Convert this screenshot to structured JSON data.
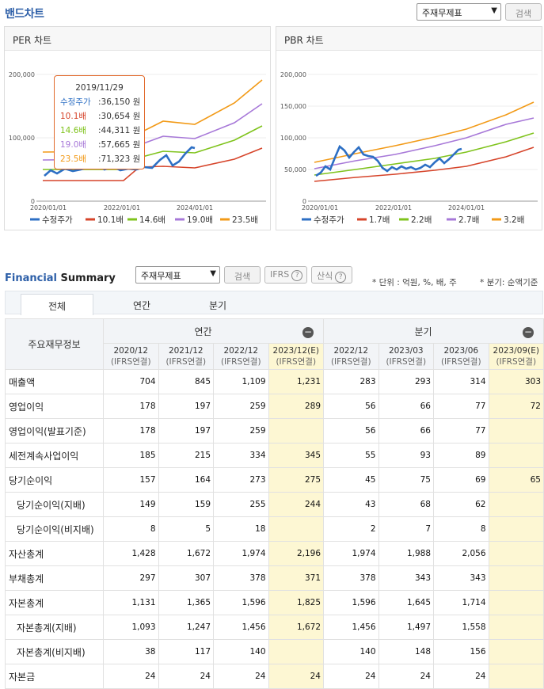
{
  "band": {
    "title": "밴드차트",
    "select": "주재무제표",
    "search": "검색"
  },
  "per": {
    "title": "PER 차트",
    "y_ticks": [
      "200,000",
      "100,000",
      "0"
    ],
    "x_ticks": [
      "2020/01/01",
      "2022/01/01",
      "2024/01/01"
    ],
    "legend": [
      "수정주가",
      "10.1배",
      "14.6배",
      "19.0배",
      "23.5배"
    ],
    "tooltip": {
      "date": "2019/11/29",
      "rows": [
        {
          "label": "수정주가",
          "value": ":36,150 원",
          "color": "#2d6fc4"
        },
        {
          "label": "10.1배",
          "value": ":30,654 원",
          "color": "#d6442a"
        },
        {
          "label": "14.6배",
          "value": ":44,311 원",
          "color": "#7fc31c"
        },
        {
          "label": "19.0배",
          "value": ":57,665 원",
          "color": "#a778d8"
        },
        {
          "label": "23.5배",
          "value": ":71,323 원",
          "color": "#f29a17"
        }
      ]
    }
  },
  "pbr": {
    "title": "PBR 차트",
    "y_ticks": [
      "200,000",
      "150,000",
      "100,000",
      "50,000",
      "0"
    ],
    "x_ticks": [
      "2020/01/01",
      "2022/01/01",
      "2024/01/01"
    ],
    "legend": [
      "수정주가",
      "1.7배",
      "2.2배",
      "2.7배",
      "3.2배"
    ]
  },
  "colors": {
    "price": "#2d6fc4",
    "b1": "#d6442a",
    "b2": "#7fc31c",
    "b3": "#a778d8",
    "b4": "#f29a17"
  },
  "fs": {
    "title_blue": "Financial",
    "title_rest": " Summary",
    "select": "주재무제표",
    "search": "검색",
    "ifrs": "IFRS",
    "sanshik": "산식",
    "help": "?",
    "unit_note": "* 단위 : 억원, %, 배, 주",
    "period_note": "* 분기: 순액기준",
    "tabs": [
      "전체",
      "연간",
      "분기"
    ],
    "corner": "주요재무정보",
    "annual": "연간",
    "quarter": "분기",
    "columns": [
      {
        "p": "2020/12",
        "t": "(IFRS연결)"
      },
      {
        "p": "2021/12",
        "t": "(IFRS연결)"
      },
      {
        "p": "2022/12",
        "t": "(IFRS연결)"
      },
      {
        "p": "2023/12(E)",
        "t": "(IFRS연결)"
      },
      {
        "p": "2022/12",
        "t": "(IFRS연결)"
      },
      {
        "p": "2023/03",
        "t": "(IFRS연결)"
      },
      {
        "p": "2023/06",
        "t": "(IFRS연결)"
      },
      {
        "p": "2023/09(E)",
        "t": "(IFRS연결)"
      }
    ],
    "rows": [
      {
        "label": "매출액",
        "sub": false,
        "v": [
          "704",
          "845",
          "1,109",
          "1,231",
          "283",
          "293",
          "314",
          "303"
        ]
      },
      {
        "label": "영업이익",
        "sub": false,
        "v": [
          "178",
          "197",
          "259",
          "289",
          "56",
          "66",
          "77",
          "72"
        ]
      },
      {
        "label": "영업이익(발표기준)",
        "sub": false,
        "v": [
          "178",
          "197",
          "259",
          "",
          "56",
          "66",
          "77",
          ""
        ]
      },
      {
        "label": "세전계속사업이익",
        "sub": false,
        "v": [
          "185",
          "215",
          "334",
          "345",
          "55",
          "93",
          "89",
          ""
        ]
      },
      {
        "label": "당기순이익",
        "sub": false,
        "v": [
          "157",
          "164",
          "273",
          "275",
          "45",
          "75",
          "69",
          "65"
        ]
      },
      {
        "label": "당기순이익(지배)",
        "sub": true,
        "v": [
          "149",
          "159",
          "255",
          "244",
          "43",
          "68",
          "62",
          ""
        ]
      },
      {
        "label": "당기순이익(비지배)",
        "sub": true,
        "v": [
          "8",
          "5",
          "18",
          "",
          "2",
          "7",
          "8",
          ""
        ]
      },
      {
        "label": "자산총계",
        "sub": false,
        "v": [
          "1,428",
          "1,672",
          "1,974",
          "2,196",
          "1,974",
          "1,988",
          "2,056",
          ""
        ]
      },
      {
        "label": "부채총계",
        "sub": false,
        "v": [
          "297",
          "307",
          "378",
          "371",
          "378",
          "343",
          "343",
          ""
        ]
      },
      {
        "label": "자본총계",
        "sub": false,
        "v": [
          "1,131",
          "1,365",
          "1,596",
          "1,825",
          "1,596",
          "1,645",
          "1,714",
          ""
        ]
      },
      {
        "label": "자본총계(지배)",
        "sub": true,
        "v": [
          "1,093",
          "1,247",
          "1,456",
          "1,672",
          "1,456",
          "1,497",
          "1,558",
          ""
        ]
      },
      {
        "label": "자본총계(비지배)",
        "sub": true,
        "v": [
          "38",
          "117",
          "140",
          "",
          "140",
          "148",
          "156",
          ""
        ]
      },
      {
        "label": "자본금",
        "sub": false,
        "v": [
          "24",
          "24",
          "24",
          "24",
          "24",
          "24",
          "24",
          ""
        ]
      }
    ]
  }
}
